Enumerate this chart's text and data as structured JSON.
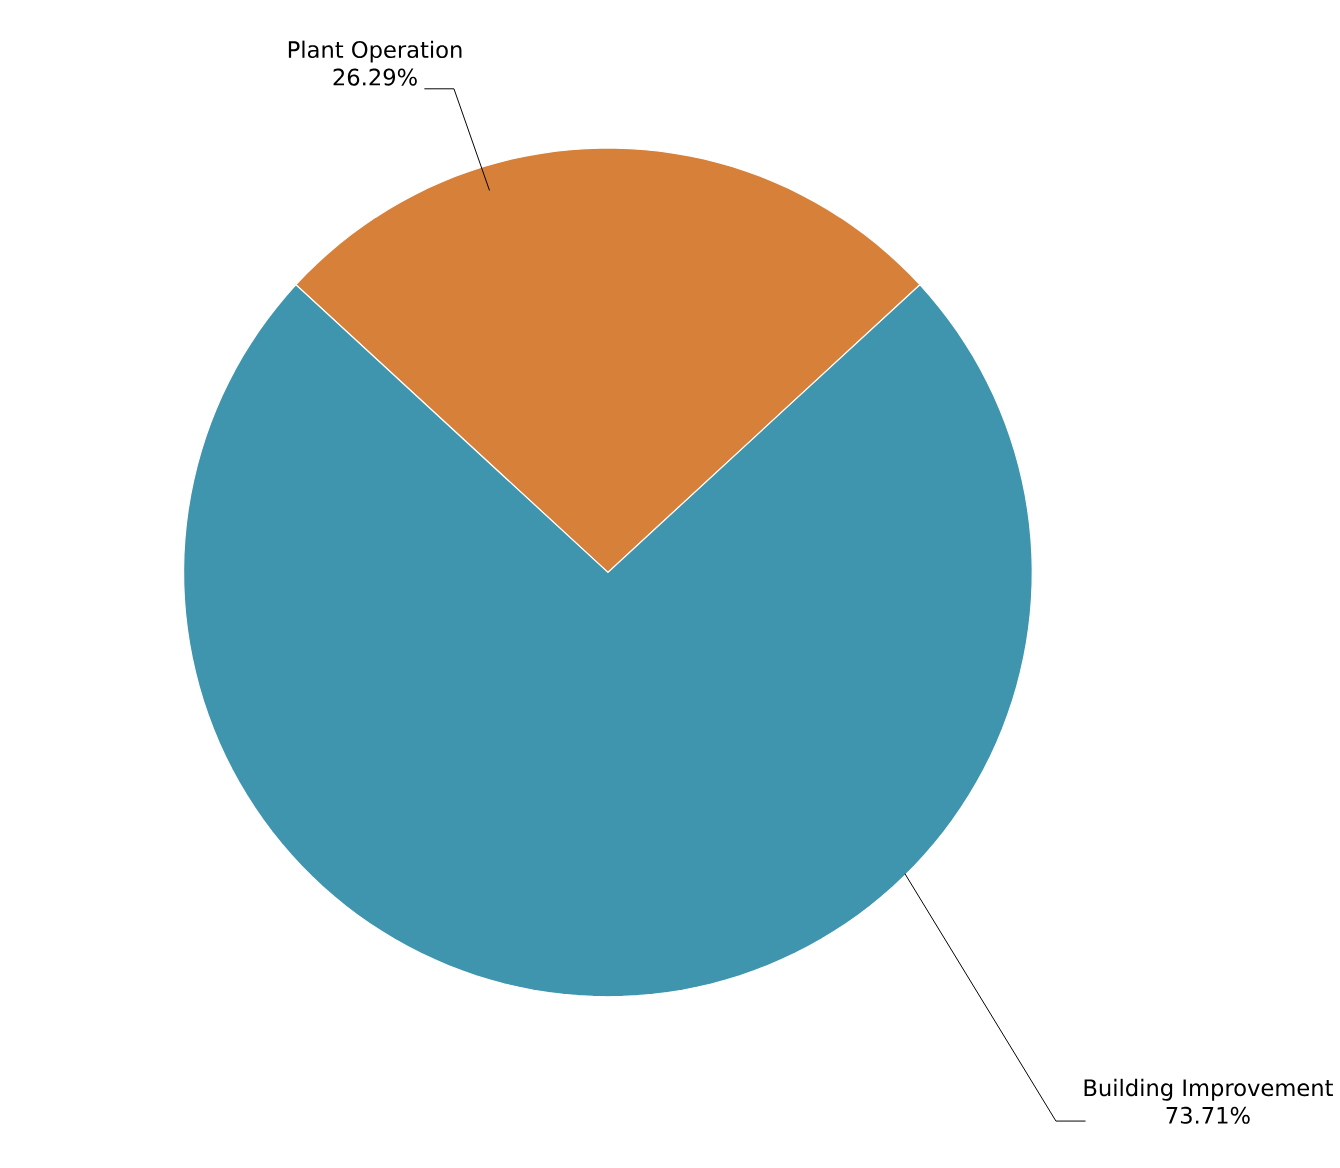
{
  "chart_data": {
    "type": "pie",
    "categories": [
      "Plant Operation",
      "Building Improvement"
    ],
    "values": [
      26.29,
      73.71
    ],
    "colors": [
      "#d6803a",
      "#4095ae"
    ],
    "value_labels": [
      "26.29%",
      "73.71%"
    ]
  }
}
